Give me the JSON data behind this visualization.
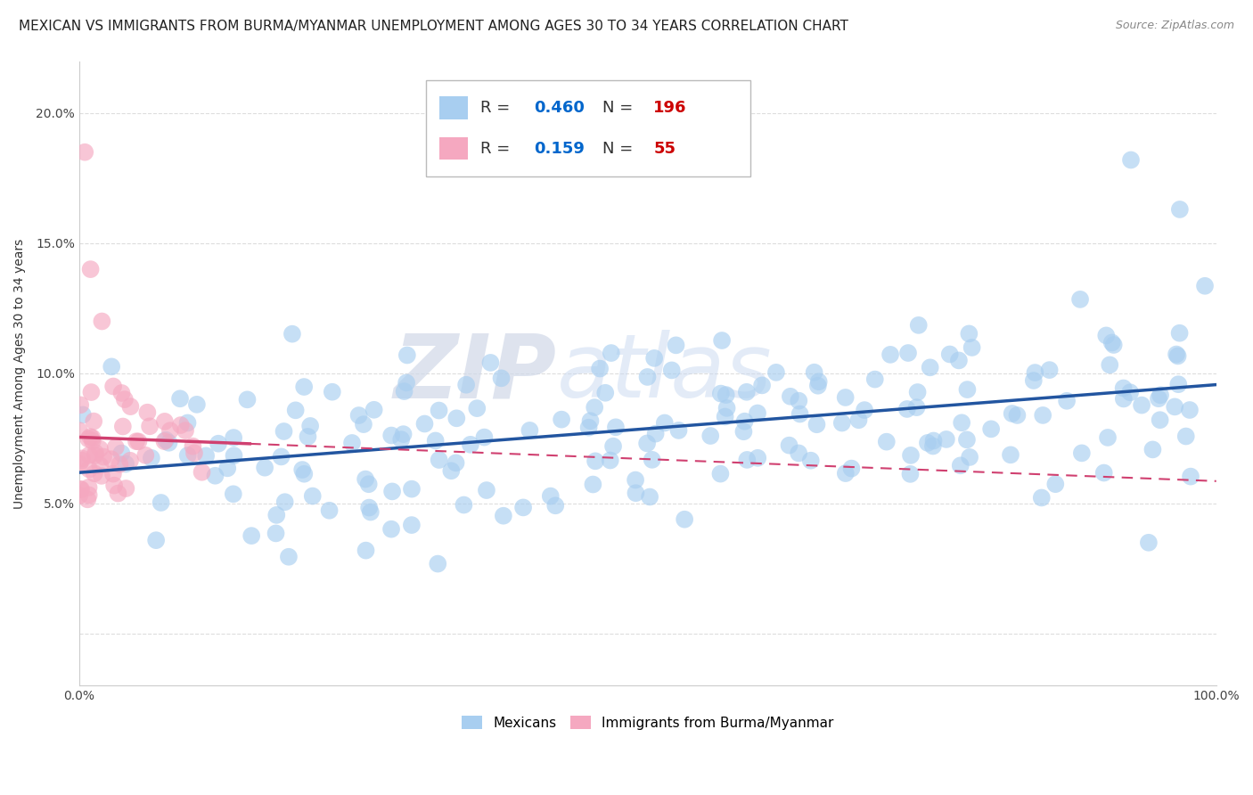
{
  "title": "MEXICAN VS IMMIGRANTS FROM BURMA/MYANMAR UNEMPLOYMENT AMONG AGES 30 TO 34 YEARS CORRELATION CHART",
  "source": "Source: ZipAtlas.com",
  "ylabel": "Unemployment Among Ages 30 to 34 years",
  "xlim": [
    0,
    1.0
  ],
  "ylim": [
    -0.02,
    0.22
  ],
  "x_tick_positions": [
    0.0,
    0.2,
    0.4,
    0.6,
    0.8,
    1.0
  ],
  "x_tick_labels": [
    "0.0%",
    "",
    "",
    "",
    "",
    "100.0%"
  ],
  "y_tick_positions": [
    0.0,
    0.05,
    0.1,
    0.15,
    0.2
  ],
  "y_tick_labels": [
    "",
    "5.0%",
    "10.0%",
    "15.0%",
    "20.0%"
  ],
  "blue_R": 0.46,
  "blue_N": 196,
  "pink_R": 0.159,
  "pink_N": 55,
  "blue_color": "#a8cef0",
  "pink_color": "#f5a8c0",
  "blue_line_color": "#2255a0",
  "pink_line_color": "#d04070",
  "watermark_zip": "ZIP",
  "watermark_atlas": "atlas",
  "background_color": "#ffffff",
  "grid_color": "#dddddd",
  "title_fontsize": 11,
  "source_fontsize": 9,
  "axis_label_fontsize": 10,
  "legend_R_color": "#0066cc",
  "legend_N_color": "#cc0000"
}
